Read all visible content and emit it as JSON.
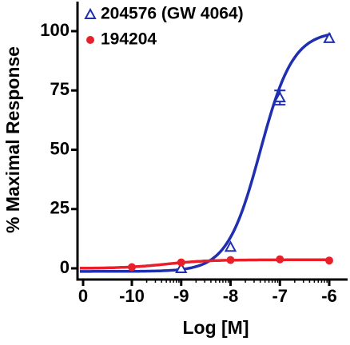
{
  "chart_data": {
    "type": "dose-response",
    "xlabel": "Log [M]",
    "ylabel": "% Maximal Response",
    "xlim": [
      -11.1,
      -5.6
    ],
    "xticks": [
      -10,
      -9,
      -8,
      -7,
      -6
    ],
    "x_zero_label": "0",
    "ylim": [
      -5,
      112
    ],
    "yticks": [
      0,
      25,
      50,
      75,
      100
    ],
    "series": [
      {
        "name": "204576 (GW 4064)",
        "color": "#1f2fb0",
        "marker": "triangle",
        "x": [
          -9,
          -8,
          -7,
          -6
        ],
        "values": [
          0,
          9,
          72,
          97
        ],
        "errors": [
          null,
          null,
          3,
          null
        ],
        "fit": {
          "bottom": -1.3,
          "top": 100,
          "logec50": -7.4,
          "hill": 1.3
        }
      },
      {
        "name": "194204",
        "color": "#e8202a",
        "marker": "circle",
        "x": [
          -10,
          -9,
          -8,
          -7,
          -6
        ],
        "values": [
          0.5,
          2.5,
          3.5,
          3.8,
          3.3
        ],
        "fit": {
          "bottom": 0,
          "top": 3.6,
          "logec50": -9.3,
          "hill": 1
        }
      }
    ]
  }
}
